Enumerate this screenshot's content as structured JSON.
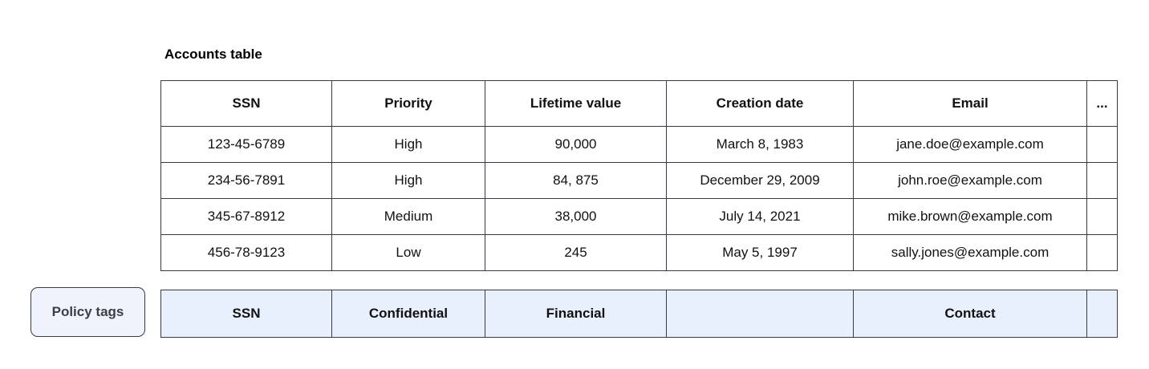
{
  "title": "Accounts table",
  "table": {
    "columns": [
      "SSN",
      "Priority",
      "Lifetime value",
      "Creation date",
      "Email",
      "..."
    ],
    "rows": [
      [
        "123-45-6789",
        "High",
        "90,000",
        "March 8, 1983",
        "jane.doe@example.com",
        ""
      ],
      [
        "234-56-7891",
        "High",
        "84, 875",
        "December 29, 2009",
        "john.roe@example.com",
        ""
      ],
      [
        "345-67-8912",
        "Medium",
        "38,000",
        "July 14, 2021",
        "mike.brown@example.com",
        ""
      ],
      [
        "456-78-9123",
        "Low",
        "245",
        "May 5, 1997",
        "sally.jones@example.com",
        ""
      ]
    ]
  },
  "policy": {
    "chip_label": "Policy tags",
    "tags": [
      "SSN",
      "Confidential",
      "Financial",
      "",
      "Contact",
      ""
    ]
  },
  "colors": {
    "border": "#363b44",
    "policy_row_fill": "#e8f0fe",
    "chip_fill": "#eef3fc",
    "chip_text": "#3c4043"
  }
}
